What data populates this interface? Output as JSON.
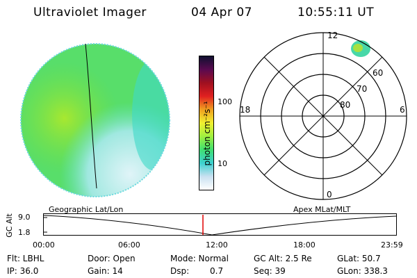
{
  "header": {
    "instrument": "Ultraviolet Imager",
    "date": "04 Apr 07",
    "time": "10:55:11 UT"
  },
  "colorbar": {
    "unit_label": "photon cm⁻²s⁻¹",
    "ticks": [
      "100",
      "10"
    ],
    "colors": [
      "#ffffff",
      "#c8e0f0",
      "#3cd0d0",
      "#40e070",
      "#a0f040",
      "#f0f030",
      "#f0a020",
      "#e02020",
      "#a01020",
      "#5a0a50",
      "#101030"
    ]
  },
  "polar": {
    "mlt_labels": {
      "top": "12",
      "left": "18",
      "right": "6",
      "bottom": "0"
    },
    "lat_labels": [
      "60",
      "70",
      "80"
    ]
  },
  "timeline": {
    "axis_label": "GC Alt",
    "y_ticks": [
      "9.0",
      "1.8"
    ],
    "left_title": "Geographic Lat/Lon",
    "right_title": "Apex MLat/MLT",
    "x_ticks": [
      "00:00",
      "06:00",
      "12:00",
      "18:00",
      "23:59"
    ]
  },
  "info": {
    "flt": "Flt: LBHL",
    "ip": "IP: 36.0",
    "door": "Door: Open",
    "gain": "Gain: 14",
    "mode": "Mode: Normal",
    "dsp_label": "Dsp:",
    "dsp_value": "0.7",
    "gc_alt": "GC Alt: 2.5 Re",
    "seq": "Seq: 39",
    "glat": "GLat: 50.7",
    "glon": "GLon: 338.3"
  }
}
